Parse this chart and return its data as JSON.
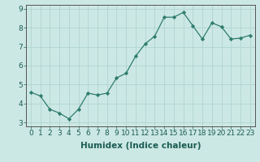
{
  "x": [
    0,
    1,
    2,
    3,
    4,
    5,
    6,
    7,
    8,
    9,
    10,
    11,
    12,
    13,
    14,
    15,
    16,
    17,
    18,
    19,
    20,
    21,
    22,
    23
  ],
  "y": [
    4.6,
    4.4,
    3.7,
    3.5,
    3.2,
    3.7,
    4.55,
    4.45,
    4.55,
    5.35,
    5.6,
    6.5,
    7.15,
    7.55,
    8.55,
    8.55,
    8.8,
    8.1,
    7.4,
    8.25,
    8.05,
    7.4,
    7.45,
    7.6
  ],
  "xlabel": "Humidex (Indice chaleur)",
  "ylabel": "",
  "xlim": [
    -0.5,
    23.5
  ],
  "ylim": [
    2.8,
    9.2
  ],
  "yticks": [
    3,
    4,
    5,
    6,
    7,
    8,
    9
  ],
  "xticks": [
    0,
    1,
    2,
    3,
    4,
    5,
    6,
    7,
    8,
    9,
    10,
    11,
    12,
    13,
    14,
    15,
    16,
    17,
    18,
    19,
    20,
    21,
    22,
    23
  ],
  "line_color": "#2e7d6e",
  "marker_color": "#2e7d6e",
  "bg_color": "#cce8e4",
  "grid_color": "#b0d4d0",
  "axes_edge_color": "#555555",
  "font_color": "#1a5c52",
  "xlabel_fontsize": 7.5,
  "tick_fontsize": 6.5
}
